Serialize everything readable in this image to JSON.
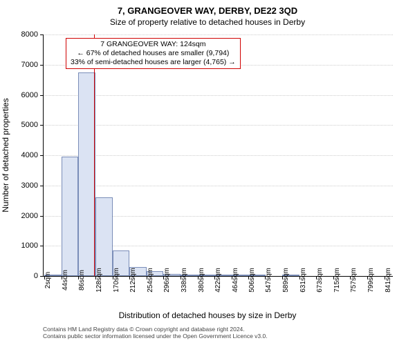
{
  "title_main": "7, GRANGEOVER WAY, DERBY, DE22 3QD",
  "title_sub": "Size of property relative to detached houses in Derby",
  "y_axis_title": "Number of detached properties",
  "x_axis_title": "Distribution of detached houses by size in Derby",
  "footnote_line1": "Contains HM Land Registry data © Crown copyright and database right 2024.",
  "footnote_line2": "Contains public sector information licensed under the Open Government Licence v3.0.",
  "annotation": {
    "line1": "7 GRANGEOVER WAY: 124sqm",
    "line2": "← 67% of detached houses are smaller (9,794)",
    "line3": "33% of semi-detached houses are larger (4,765) →"
  },
  "chart": {
    "type": "histogram",
    "ylim": [
      0,
      8000
    ],
    "ytick_step": 1000,
    "xlim_sqm": [
      0,
      862
    ],
    "x_ticks": [
      2,
      44,
      86,
      128,
      170,
      212,
      254,
      296,
      338,
      380,
      422,
      464,
      506,
      547,
      589,
      631,
      673,
      715,
      757,
      799,
      841
    ],
    "x_tick_suffix": "sqm",
    "marker_sqm": 124,
    "marker_color": "#d00000",
    "bar_fill": "#dbe3f3",
    "bar_stroke": "#7a8db8",
    "grid_color": "#cccccc",
    "background_color": "#ffffff",
    "label_fontsize": 11,
    "title_fontsize": 13,
    "bin_width_sqm": 42,
    "bins": [
      {
        "start": 2,
        "count": 5
      },
      {
        "start": 44,
        "count": 3950
      },
      {
        "start": 86,
        "count": 6750
      },
      {
        "start": 128,
        "count": 2600
      },
      {
        "start": 170,
        "count": 850
      },
      {
        "start": 212,
        "count": 300
      },
      {
        "start": 254,
        "count": 150
      },
      {
        "start": 296,
        "count": 80
      },
      {
        "start": 338,
        "count": 50
      },
      {
        "start": 380,
        "count": 30
      },
      {
        "start": 422,
        "count": 10
      },
      {
        "start": 464,
        "count": 2
      },
      {
        "start": 506,
        "count": 2
      },
      {
        "start": 547,
        "count": 0
      },
      {
        "start": 589,
        "count": 2
      },
      {
        "start": 631,
        "count": 0
      },
      {
        "start": 673,
        "count": 0
      },
      {
        "start": 715,
        "count": 0
      },
      {
        "start": 757,
        "count": 0
      },
      {
        "start": 799,
        "count": 0
      }
    ]
  }
}
